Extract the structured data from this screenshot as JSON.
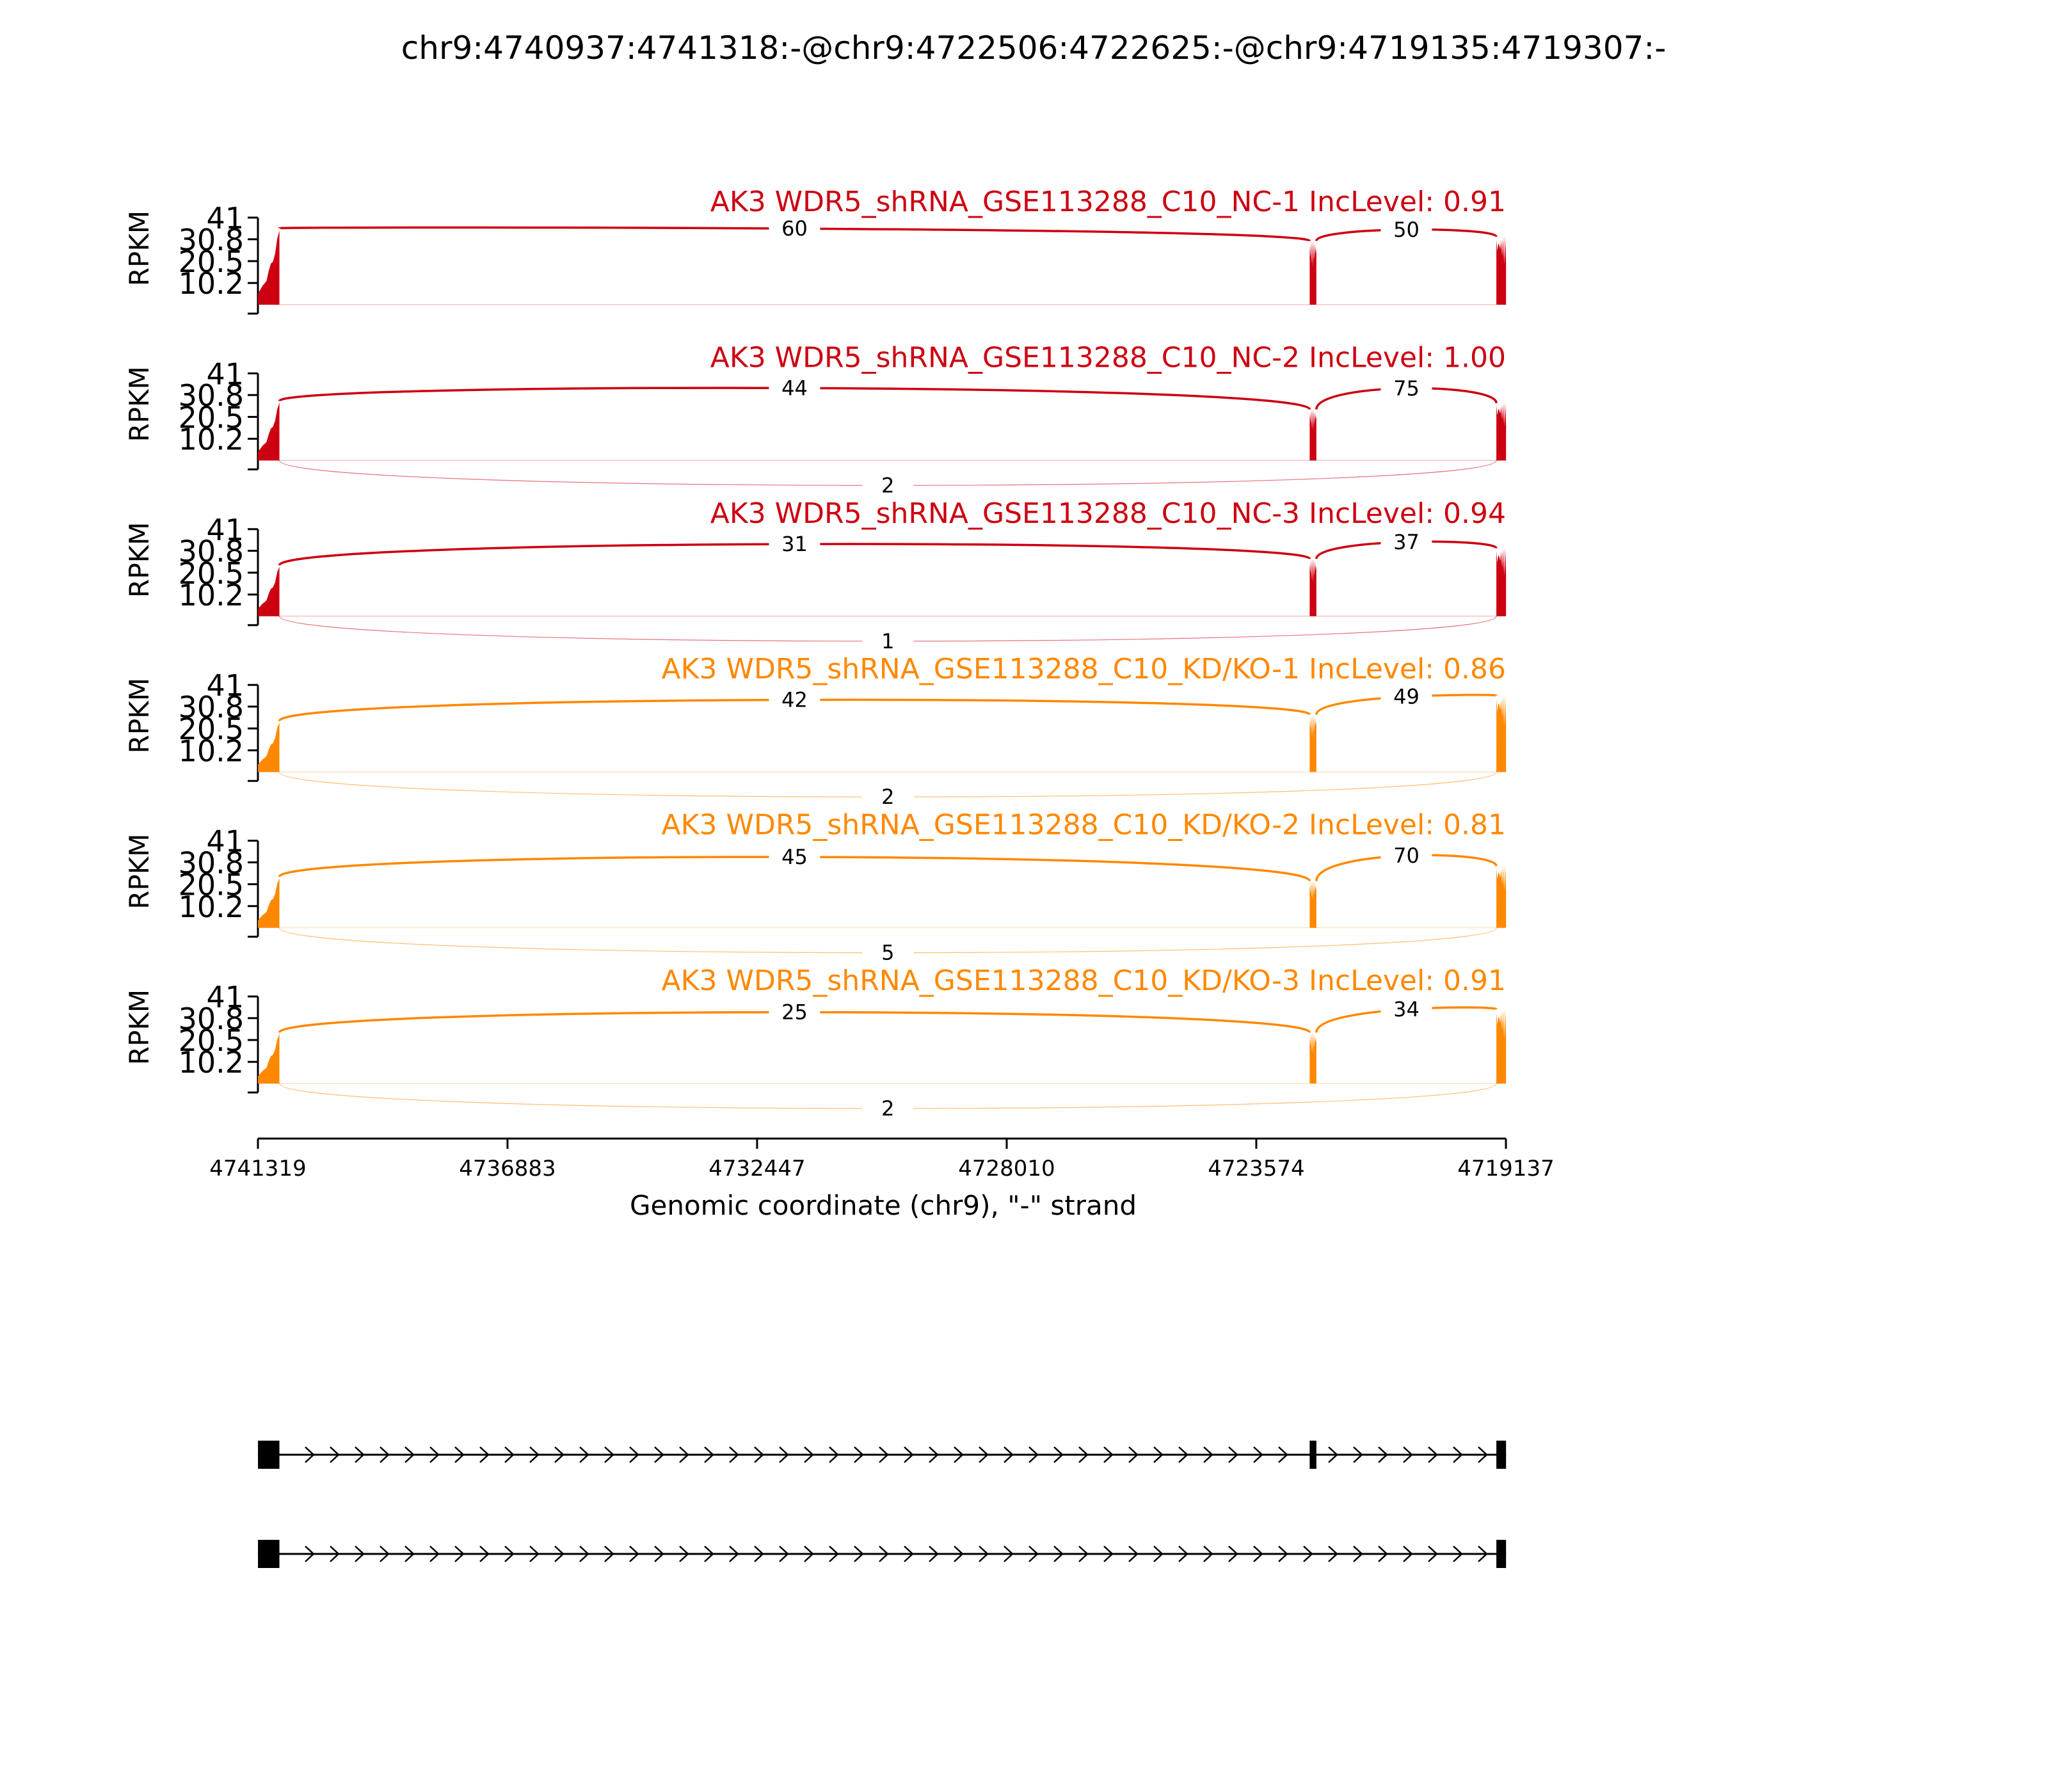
{
  "chart_data": {
    "type": "sashimi",
    "title": "chr9:4740937:4741318:-@chr9:4722506:4722625:-@chr9:4719135:4719307:-",
    "xlabel": "Genomic coordinate (chr9), \"-\" strand",
    "ylabel": "RPKM",
    "xlim": [
      4741319,
      4719137
    ],
    "x_ticks": [
      "4741319",
      "4736883",
      "4732447",
      "4728010",
      "4723574",
      "4719137"
    ],
    "ylim": [
      0,
      41
    ],
    "y_ticks": [
      "41",
      "30.8",
      "20.5",
      "10.2"
    ],
    "exons": [
      {
        "start": 4741318,
        "end": 4740937
      },
      {
        "start": 4722625,
        "end": 4722506
      },
      {
        "start": 4719307,
        "end": 4719135
      }
    ],
    "tracks": [
      {
        "label": "AK3 WDR5_shRNA_GSE113288_C10_NC-1 IncLevel: 0.91",
        "color": "#cc0011",
        "coverage": {
          "exon1": 36,
          "exon2": 30,
          "exon3": 32
        },
        "junctions": [
          {
            "from": 0,
            "to": 1,
            "count": "60",
            "side": "top"
          },
          {
            "from": 1,
            "to": 2,
            "count": "50",
            "side": "top"
          }
        ]
      },
      {
        "label": "AK3 WDR5_shRNA_GSE113288_C10_NC-2 IncLevel: 1.00",
        "color": "#cc0011",
        "coverage": {
          "exon1": 28,
          "exon2": 24,
          "exon3": 27
        },
        "junctions": [
          {
            "from": 0,
            "to": 1,
            "count": "44",
            "side": "top"
          },
          {
            "from": 1,
            "to": 2,
            "count": "75",
            "side": "top"
          },
          {
            "from": 0,
            "to": 2,
            "count": "2",
            "side": "bottom"
          }
        ]
      },
      {
        "label": "AK3 WDR5_shRNA_GSE113288_C10_NC-3 IncLevel: 0.94",
        "color": "#cc0011",
        "coverage": {
          "exon1": 24,
          "exon2": 27,
          "exon3": 32
        },
        "junctions": [
          {
            "from": 0,
            "to": 1,
            "count": "31",
            "side": "top"
          },
          {
            "from": 1,
            "to": 2,
            "count": "37",
            "side": "top"
          },
          {
            "from": 0,
            "to": 2,
            "count": "1",
            "side": "bottom"
          }
        ]
      },
      {
        "label": "AK3 WDR5_shRNA_GSE113288_C10_KD/KO-1 IncLevel: 0.86",
        "color": "#ff8800",
        "coverage": {
          "exon1": 24,
          "exon2": 27,
          "exon3": 36
        },
        "junctions": [
          {
            "from": 0,
            "to": 1,
            "count": "42",
            "side": "top"
          },
          {
            "from": 1,
            "to": 2,
            "count": "49",
            "side": "top"
          },
          {
            "from": 0,
            "to": 2,
            "count": "2",
            "side": "bottom"
          }
        ]
      },
      {
        "label": "AK3 WDR5_shRNA_GSE113288_C10_KD/KO-2 IncLevel: 0.81",
        "color": "#ff8800",
        "coverage": {
          "exon1": 24,
          "exon2": 22,
          "exon3": 29
        },
        "junctions": [
          {
            "from": 0,
            "to": 1,
            "count": "45",
            "side": "top"
          },
          {
            "from": 1,
            "to": 2,
            "count": "70",
            "side": "top"
          },
          {
            "from": 0,
            "to": 2,
            "count": "5",
            "side": "bottom"
          }
        ]
      },
      {
        "label": "AK3 WDR5_shRNA_GSE113288_C10_KD/KO-3 IncLevel: 0.91",
        "color": "#ff8800",
        "coverage": {
          "exon1": 24,
          "exon2": 24,
          "exon3": 35
        },
        "junctions": [
          {
            "from": 0,
            "to": 1,
            "count": "25",
            "side": "top"
          },
          {
            "from": 1,
            "to": 2,
            "count": "34",
            "side": "top"
          },
          {
            "from": 0,
            "to": 2,
            "count": "2",
            "side": "bottom"
          }
        ]
      }
    ],
    "isoforms": [
      {
        "exons": [
          0,
          1,
          2
        ]
      },
      {
        "exons": [
          0,
          2
        ]
      }
    ]
  }
}
